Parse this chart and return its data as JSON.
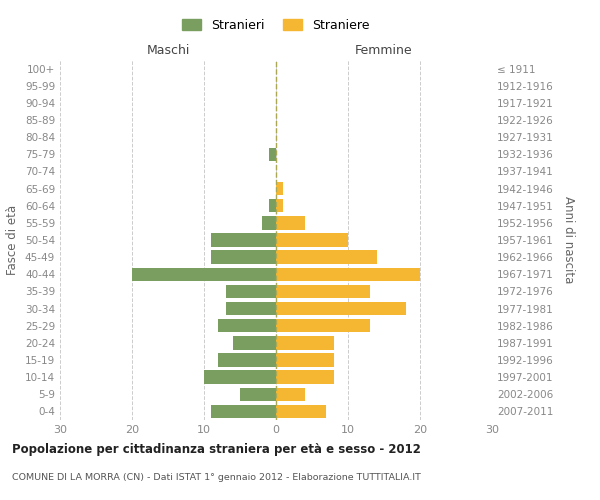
{
  "age_groups": [
    "0-4",
    "5-9",
    "10-14",
    "15-19",
    "20-24",
    "25-29",
    "30-34",
    "35-39",
    "40-44",
    "45-49",
    "50-54",
    "55-59",
    "60-64",
    "65-69",
    "70-74",
    "75-79",
    "80-84",
    "85-89",
    "90-94",
    "95-99",
    "100+"
  ],
  "birth_years": [
    "2007-2011",
    "2002-2006",
    "1997-2001",
    "1992-1996",
    "1987-1991",
    "1982-1986",
    "1977-1981",
    "1972-1976",
    "1967-1971",
    "1962-1966",
    "1957-1961",
    "1952-1956",
    "1947-1951",
    "1942-1946",
    "1937-1941",
    "1932-1936",
    "1927-1931",
    "1922-1926",
    "1917-1921",
    "1912-1916",
    "≤ 1911"
  ],
  "maschi": [
    9,
    5,
    10,
    8,
    6,
    8,
    7,
    7,
    20,
    9,
    9,
    2,
    1,
    0,
    0,
    1,
    0,
    0,
    0,
    0,
    0
  ],
  "femmine": [
    7,
    4,
    8,
    8,
    8,
    13,
    18,
    13,
    20,
    14,
    10,
    4,
    1,
    1,
    0,
    0,
    0,
    0,
    0,
    0,
    0
  ],
  "male_color": "#7a9e5f",
  "female_color": "#f5b731",
  "title": "Popolazione per cittadinanza straniera per età e sesso - 2012",
  "subtitle": "COMUNE DI LA MORRA (CN) - Dati ISTAT 1° gennaio 2012 - Elaborazione TUTTITALIA.IT",
  "ylabel_left": "Fasce di età",
  "ylabel_right": "Anni di nascita",
  "legend_male": "Stranieri",
  "legend_female": "Straniere",
  "xlim": 30,
  "background_color": "#ffffff",
  "grid_color": "#cccccc",
  "maschi_header": "Maschi",
  "femmine_header": "Femmine"
}
